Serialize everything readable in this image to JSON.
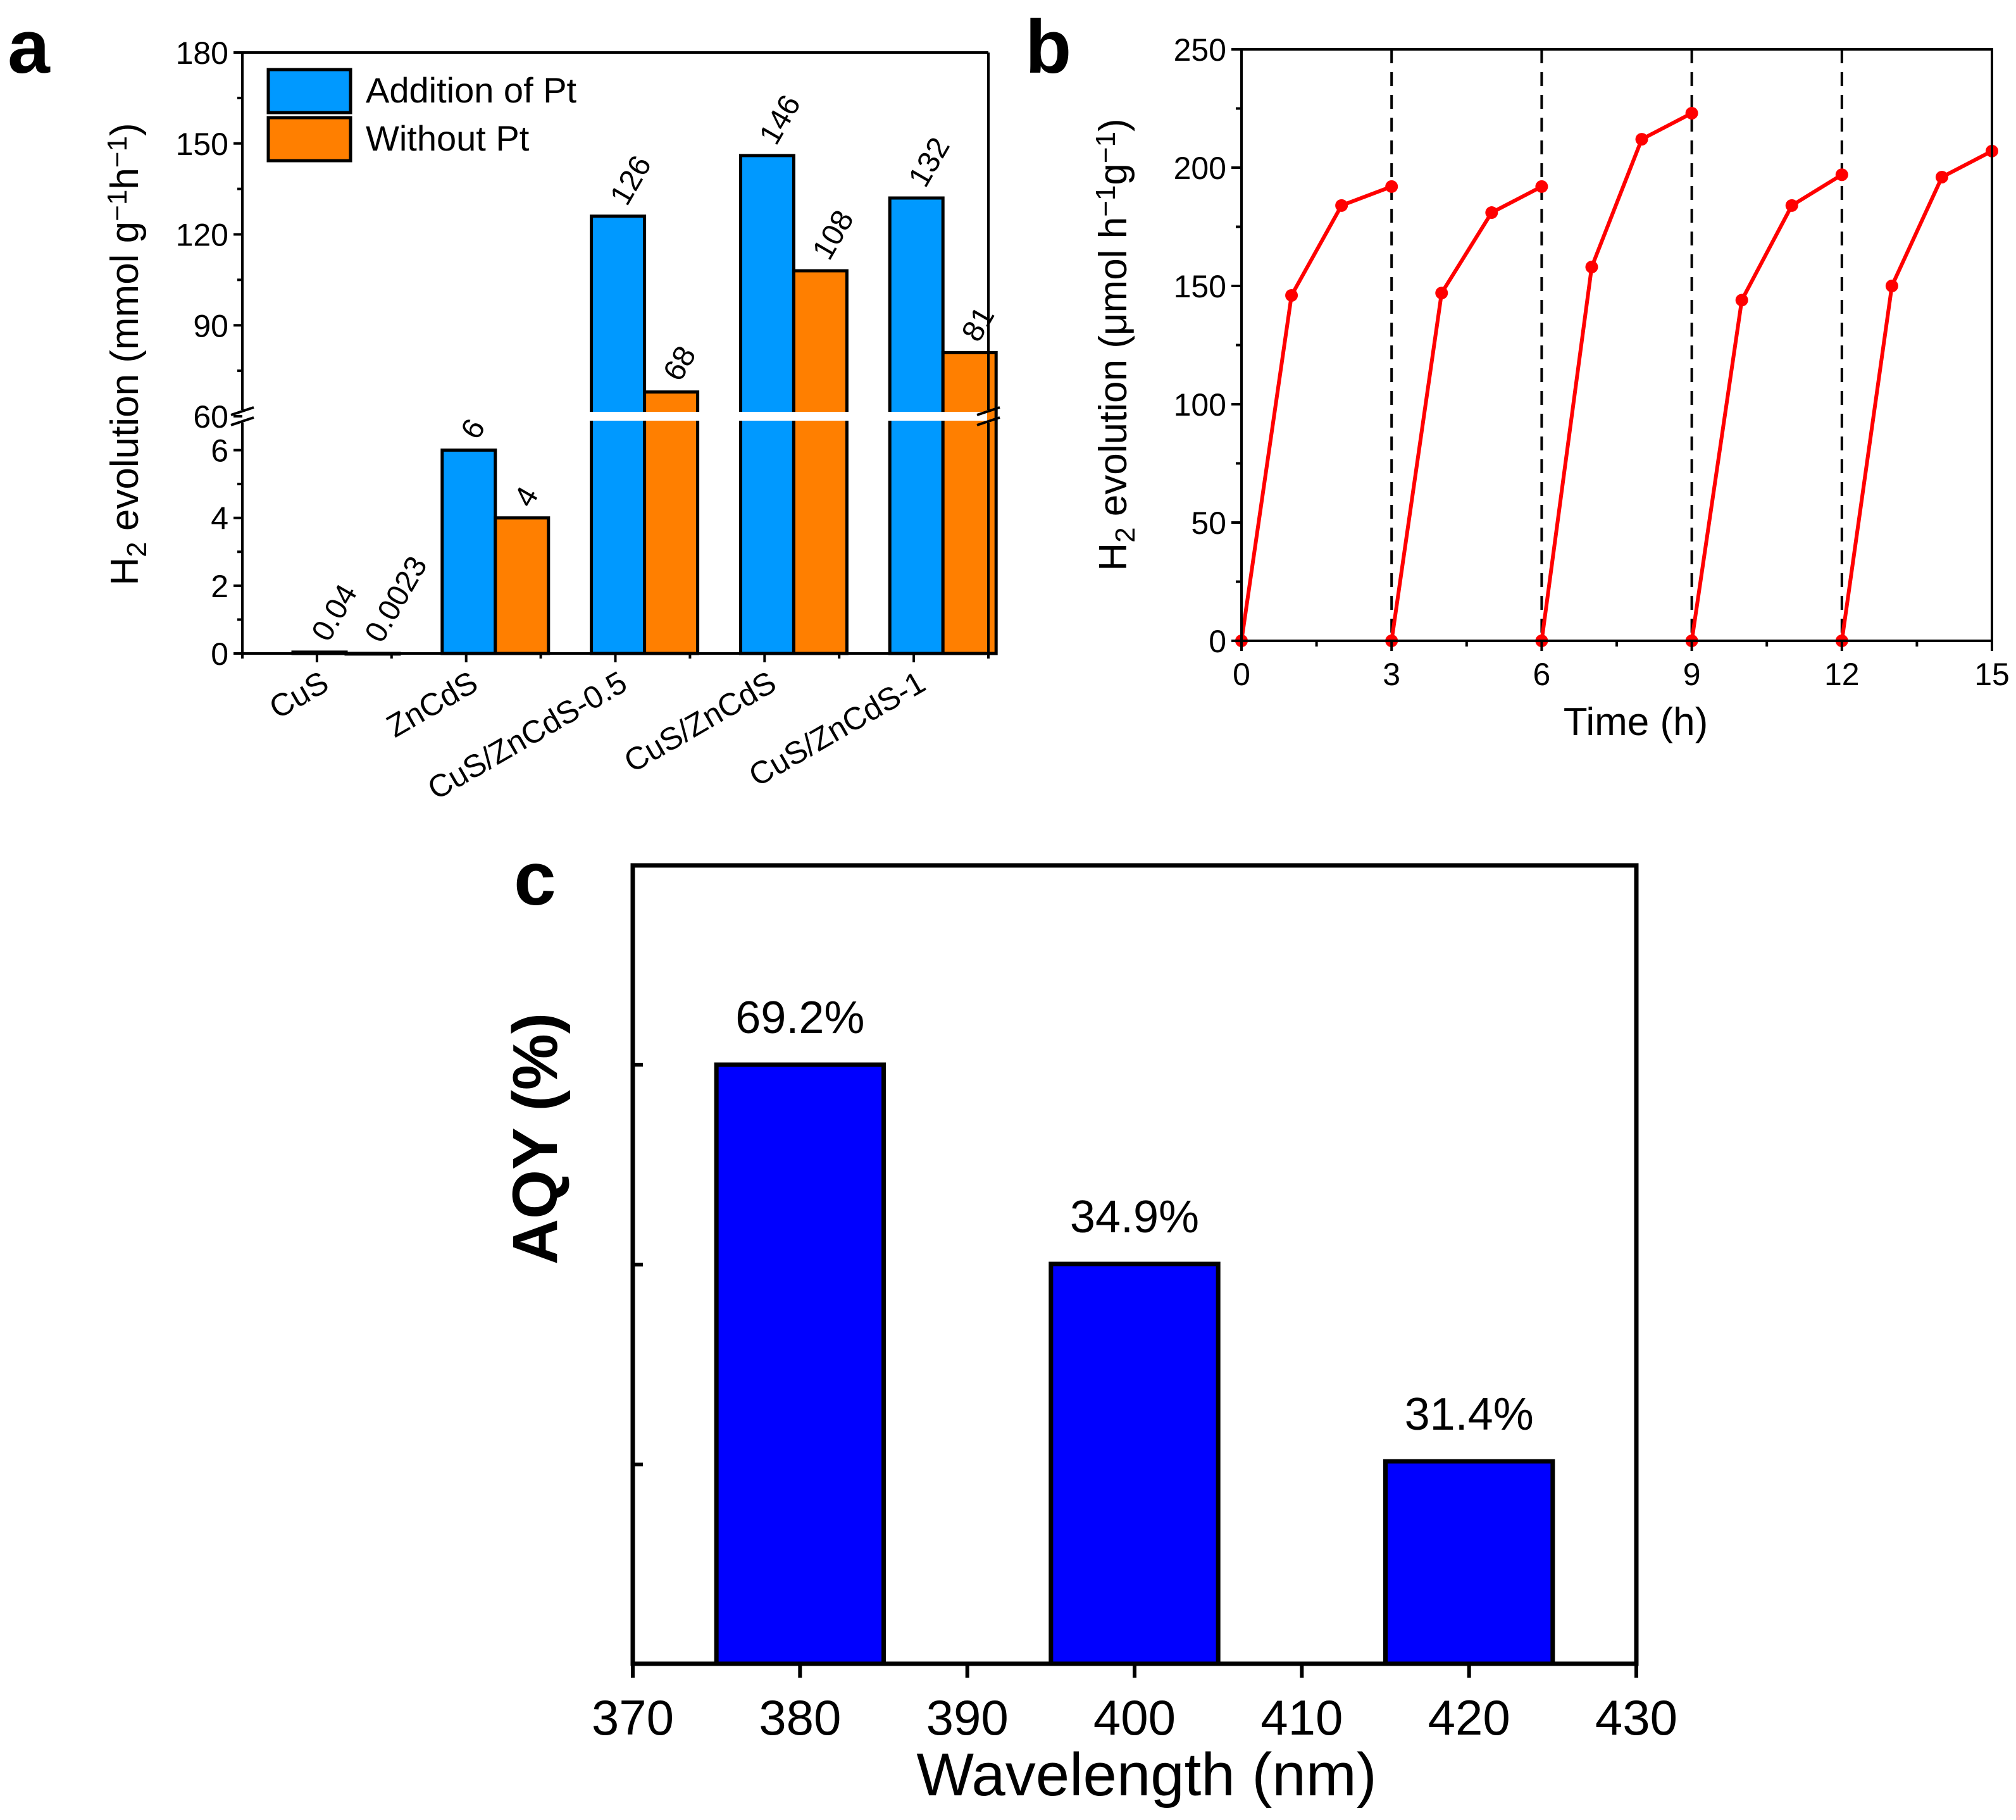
{
  "chart_data": [
    {
      "id": "a",
      "panel_label": "a",
      "type": "bar",
      "categories": [
        "CuS",
        "ZnCdS",
        "CuS/ZnCdS-0.5",
        "CuS/ZnCdS",
        "CuS/ZnCdS-1"
      ],
      "series": [
        {
          "name": "Addition of Pt",
          "color": "#0099ff",
          "values": [
            0.04,
            6,
            126,
            146,
            132
          ],
          "labels": [
            "0.04",
            "6",
            "126",
            "146",
            "132"
          ]
        },
        {
          "name": "Without Pt",
          "color": "#ff7f00",
          "values": [
            0.0023,
            4,
            68,
            108,
            81
          ],
          "labels": [
            "0.0023",
            "4",
            "68",
            "108",
            "81"
          ]
        }
      ],
      "ylabel_parts": [
        "H",
        "2",
        " evolution (mmol g",
        "−1",
        "h",
        "−1",
        ")"
      ],
      "y_broken_axis": {
        "lower_range": [
          0,
          7
        ],
        "upper_range": [
          60,
          180
        ],
        "lower_ticks": [
          "0",
          "2",
          "4",
          "6"
        ],
        "upper_ticks": [
          "60",
          "90",
          "120",
          "150",
          "180"
        ]
      },
      "legend_position": "top-left"
    },
    {
      "id": "b",
      "panel_label": "b",
      "type": "line",
      "series": [
        {
          "name": "H2 evolution",
          "color": "#ff0000",
          "points": [
            [
              0,
              0
            ],
            [
              1,
              146
            ],
            [
              2,
              184
            ],
            [
              3,
              192
            ],
            [
              3,
              0
            ],
            [
              4,
              147
            ],
            [
              5,
              181
            ],
            [
              6,
              192
            ],
            [
              6,
              0
            ],
            [
              7,
              158
            ],
            [
              8,
              212
            ],
            [
              9,
              223
            ],
            [
              9,
              0
            ],
            [
              10,
              144
            ],
            [
              11,
              184
            ],
            [
              12,
              197
            ],
            [
              12,
              0
            ],
            [
              13,
              150
            ],
            [
              14,
              196
            ],
            [
              15,
              207
            ]
          ]
        }
      ],
      "cycle_boundaries": [
        3,
        6,
        9,
        12
      ],
      "xlabel": "Time (h)",
      "ylabel_parts": [
        "H",
        "2",
        " evolution (μmol h",
        "−1",
        "g",
        "−1",
        ")"
      ],
      "xlim": [
        0,
        15
      ],
      "ylim": [
        0,
        250
      ],
      "xticks": [
        "0",
        "3",
        "6",
        "9",
        "12",
        "15"
      ],
      "yticks": [
        "0",
        "50",
        "100",
        "150",
        "200",
        "250"
      ]
    },
    {
      "id": "c",
      "panel_label": "c",
      "type": "bar",
      "categories": [
        380,
        400,
        420
      ],
      "values": [
        69.2,
        34.9,
        31.4
      ],
      "labels": [
        "69.2%",
        "34.9%",
        "31.4%"
      ],
      "bar_color": "#0000ff",
      "bar_width_nm": 10,
      "xlabel": "Wavelength (nm)",
      "ylabel": "AQY (%)",
      "xlim": [
        370,
        430
      ],
      "xticks": [
        "370",
        "380",
        "390",
        "400",
        "410",
        "420",
        "430"
      ],
      "y_note": "y-axis tick labels not shown"
    }
  ]
}
